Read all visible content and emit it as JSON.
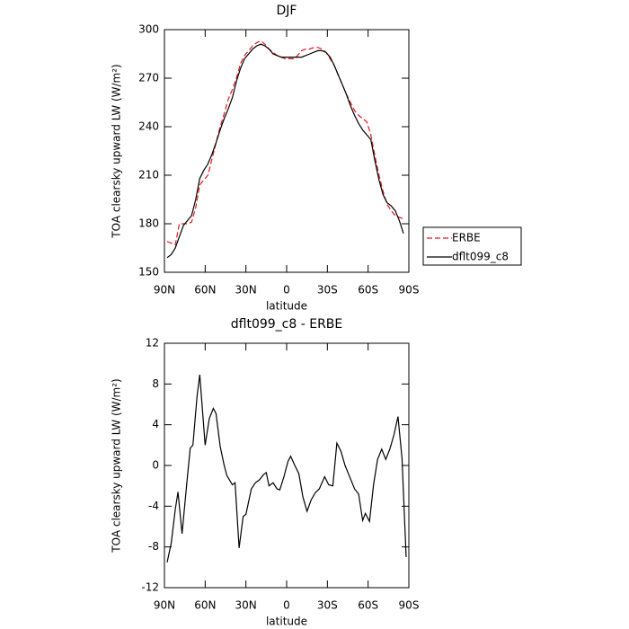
{
  "chart_data": [
    {
      "type": "line",
      "title": "DJF",
      "xlabel": "latitude",
      "ylabel": "TOA clearsky upward LW (W/m²)",
      "x": [
        88,
        85,
        82,
        79,
        76,
        73,
        70,
        67,
        64,
        61,
        58,
        55,
        52,
        49,
        46,
        43,
        40,
        37,
        34,
        31,
        28,
        25,
        22,
        19,
        16,
        13,
        10,
        7,
        4,
        1,
        -2,
        -5,
        -8,
        -11,
        -14,
        -17,
        -20,
        -23,
        -26,
        -29,
        -32,
        -35,
        -38,
        -41,
        -44,
        -47,
        -50,
        -53,
        -56,
        -59,
        -62,
        -65,
        -68,
        -71,
        -74,
        -77,
        -80,
        -83,
        -86
      ],
      "series": [
        {
          "name": "ERBE",
          "color": "#e8161b",
          "linestyle": "dashed",
          "values": [
            169,
            168,
            167,
            180,
            180,
            180,
            181,
            190,
            204,
            207,
            210,
            220,
            230,
            240,
            248,
            257,
            263,
            270,
            279,
            284,
            287,
            290,
            292,
            293,
            291,
            288,
            286,
            284,
            283,
            282,
            282,
            282,
            284,
            287,
            288,
            288,
            289,
            289,
            288,
            286,
            282,
            278,
            272,
            266,
            260,
            255,
            250,
            247,
            245,
            243,
            235,
            222,
            210,
            200,
            192,
            188,
            185,
            184,
            183
          ]
        },
        {
          "name": "dflt099_c8",
          "color": "#000000",
          "linestyle": "solid",
          "values": [
            159,
            161,
            165,
            172,
            179,
            182,
            185,
            195,
            208,
            213,
            217,
            223,
            230,
            238,
            245,
            251,
            258,
            268,
            276,
            282,
            285,
            288,
            290,
            291,
            290,
            288,
            285,
            284,
            283,
            283,
            283,
            283,
            283,
            283,
            284,
            285,
            286,
            287,
            287,
            286,
            283,
            278,
            272,
            266,
            260,
            253,
            247,
            242,
            238,
            235,
            232,
            219,
            207,
            198,
            193,
            191,
            188,
            182,
            174
          ]
        }
      ],
      "xlim": [
        90,
        -90
      ],
      "xticks": [
        {
          "value": 90,
          "label": "90N"
        },
        {
          "value": 60,
          "label": "60N"
        },
        {
          "value": 30,
          "label": "30N"
        },
        0,
        {
          "value": -30,
          "label": "30S"
        },
        {
          "value": -60,
          "label": "60S"
        },
        {
          "value": -90,
          "label": "90S"
        }
      ],
      "ylim": [
        150,
        300
      ],
      "yticks": [
        150,
        180,
        210,
        240,
        270,
        300
      ],
      "legend": "right"
    },
    {
      "type": "line",
      "title": "dflt099_c8 - ERBE",
      "xlabel": "latitude",
      "ylabel": "TOA clearsky upward LW (W/m²)",
      "x": [
        88,
        85,
        82,
        80,
        77,
        73,
        71,
        69,
        66,
        64,
        60,
        57,
        54,
        52,
        49,
        46,
        44,
        40,
        38,
        35,
        32,
        30,
        26,
        23,
        20,
        17,
        15,
        13,
        10,
        7,
        5,
        2,
        -1,
        -3,
        -6,
        -9,
        -12,
        -15,
        -18,
        -21,
        -24,
        -28,
        -31,
        -34,
        -37,
        -40,
        -43,
        -47,
        -50,
        -53,
        -56,
        -58,
        -61,
        -64,
        -67,
        -70,
        -73,
        -76,
        -79,
        -82,
        -85,
        -88
      ],
      "series": [
        {
          "name": "dflt099_c8 - ERBE",
          "color": "#000000",
          "linestyle": "solid",
          "values": [
            -9.5,
            -7.6,
            -4.3,
            -2.6,
            -6.7,
            -1,
            1.7,
            2,
            6.8,
            8.9,
            2,
            4.6,
            5.6,
            5.1,
            1.9,
            0,
            -1,
            -1.9,
            -1.7,
            -8.1,
            -5,
            -4.8,
            -2.3,
            -1.7,
            -1.4,
            -0.9,
            -0.7,
            -2,
            -1.7,
            -2.3,
            -2.4,
            -1.1,
            0.4,
            0.9,
            0,
            -0.8,
            -3.1,
            -4.5,
            -3.4,
            -2.7,
            -2.3,
            -1.1,
            -1.9,
            -2,
            2.2,
            1.4,
            0,
            -1.3,
            -2.3,
            -2.8,
            -5.4,
            -4.7,
            -5.5,
            -1.9,
            0.6,
            1.6,
            0.6,
            1.6,
            3,
            4.8,
            0.7,
            -9
          ]
        }
      ],
      "xlim": [
        90,
        -90
      ],
      "xticks": [
        {
          "value": 90,
          "label": "90N"
        },
        {
          "value": 60,
          "label": "60N"
        },
        {
          "value": 30,
          "label": "30N"
        },
        0,
        {
          "value": -30,
          "label": "30S"
        },
        {
          "value": -60,
          "label": "60S"
        },
        {
          "value": -90,
          "label": "90S"
        }
      ],
      "ylim": [
        -12,
        12
      ],
      "yticks": [
        -12,
        -8,
        -4,
        0,
        4,
        8,
        12
      ]
    }
  ]
}
